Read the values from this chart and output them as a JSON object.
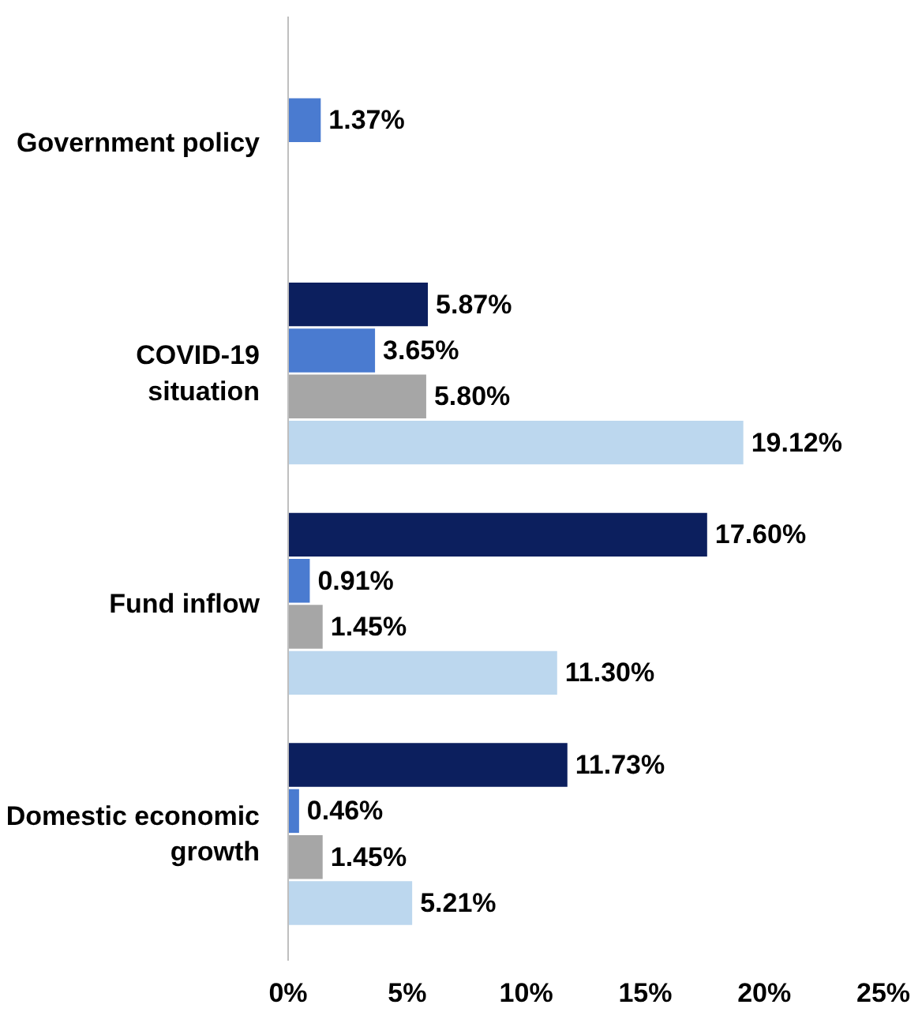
{
  "chart_data": {
    "type": "bar",
    "orientation": "horizontal",
    "categories": [
      "Government policy",
      "COVID-19 situation",
      "Fund inflow",
      "Domestic economic growth"
    ],
    "series": [
      {
        "color": "#0c1f5e",
        "values": [
          null,
          5.87,
          17.6,
          11.73
        ],
        "value_labels": [
          null,
          "5.87%",
          "17.60%",
          "11.73%"
        ]
      },
      {
        "color": "#4a7bd0",
        "values": [
          1.37,
          3.65,
          0.91,
          0.46
        ],
        "value_labels": [
          "1.37%",
          "3.65%",
          "0.91%",
          "0.46%"
        ]
      },
      {
        "color": "#a6a6a6",
        "values": [
          null,
          5.8,
          1.45,
          1.45
        ],
        "value_labels": [
          null,
          "5.80%",
          "1.45%",
          "1.45%"
        ]
      },
      {
        "color": "#bcd7ee",
        "values": [
          null,
          19.12,
          11.3,
          5.21
        ],
        "value_labels": [
          null,
          "19.12%",
          "11.30%",
          "5.21%"
        ]
      }
    ],
    "xlim": [
      0,
      25
    ],
    "xticks": [
      {
        "value": 0,
        "label": "0%"
      },
      {
        "value": 5,
        "label": "5%"
      },
      {
        "value": 10,
        "label": "10%"
      },
      {
        "value": 15,
        "label": "15%"
      },
      {
        "value": 20,
        "label": "20%"
      },
      {
        "value": 25,
        "label": "25%"
      }
    ],
    "grid": false
  }
}
